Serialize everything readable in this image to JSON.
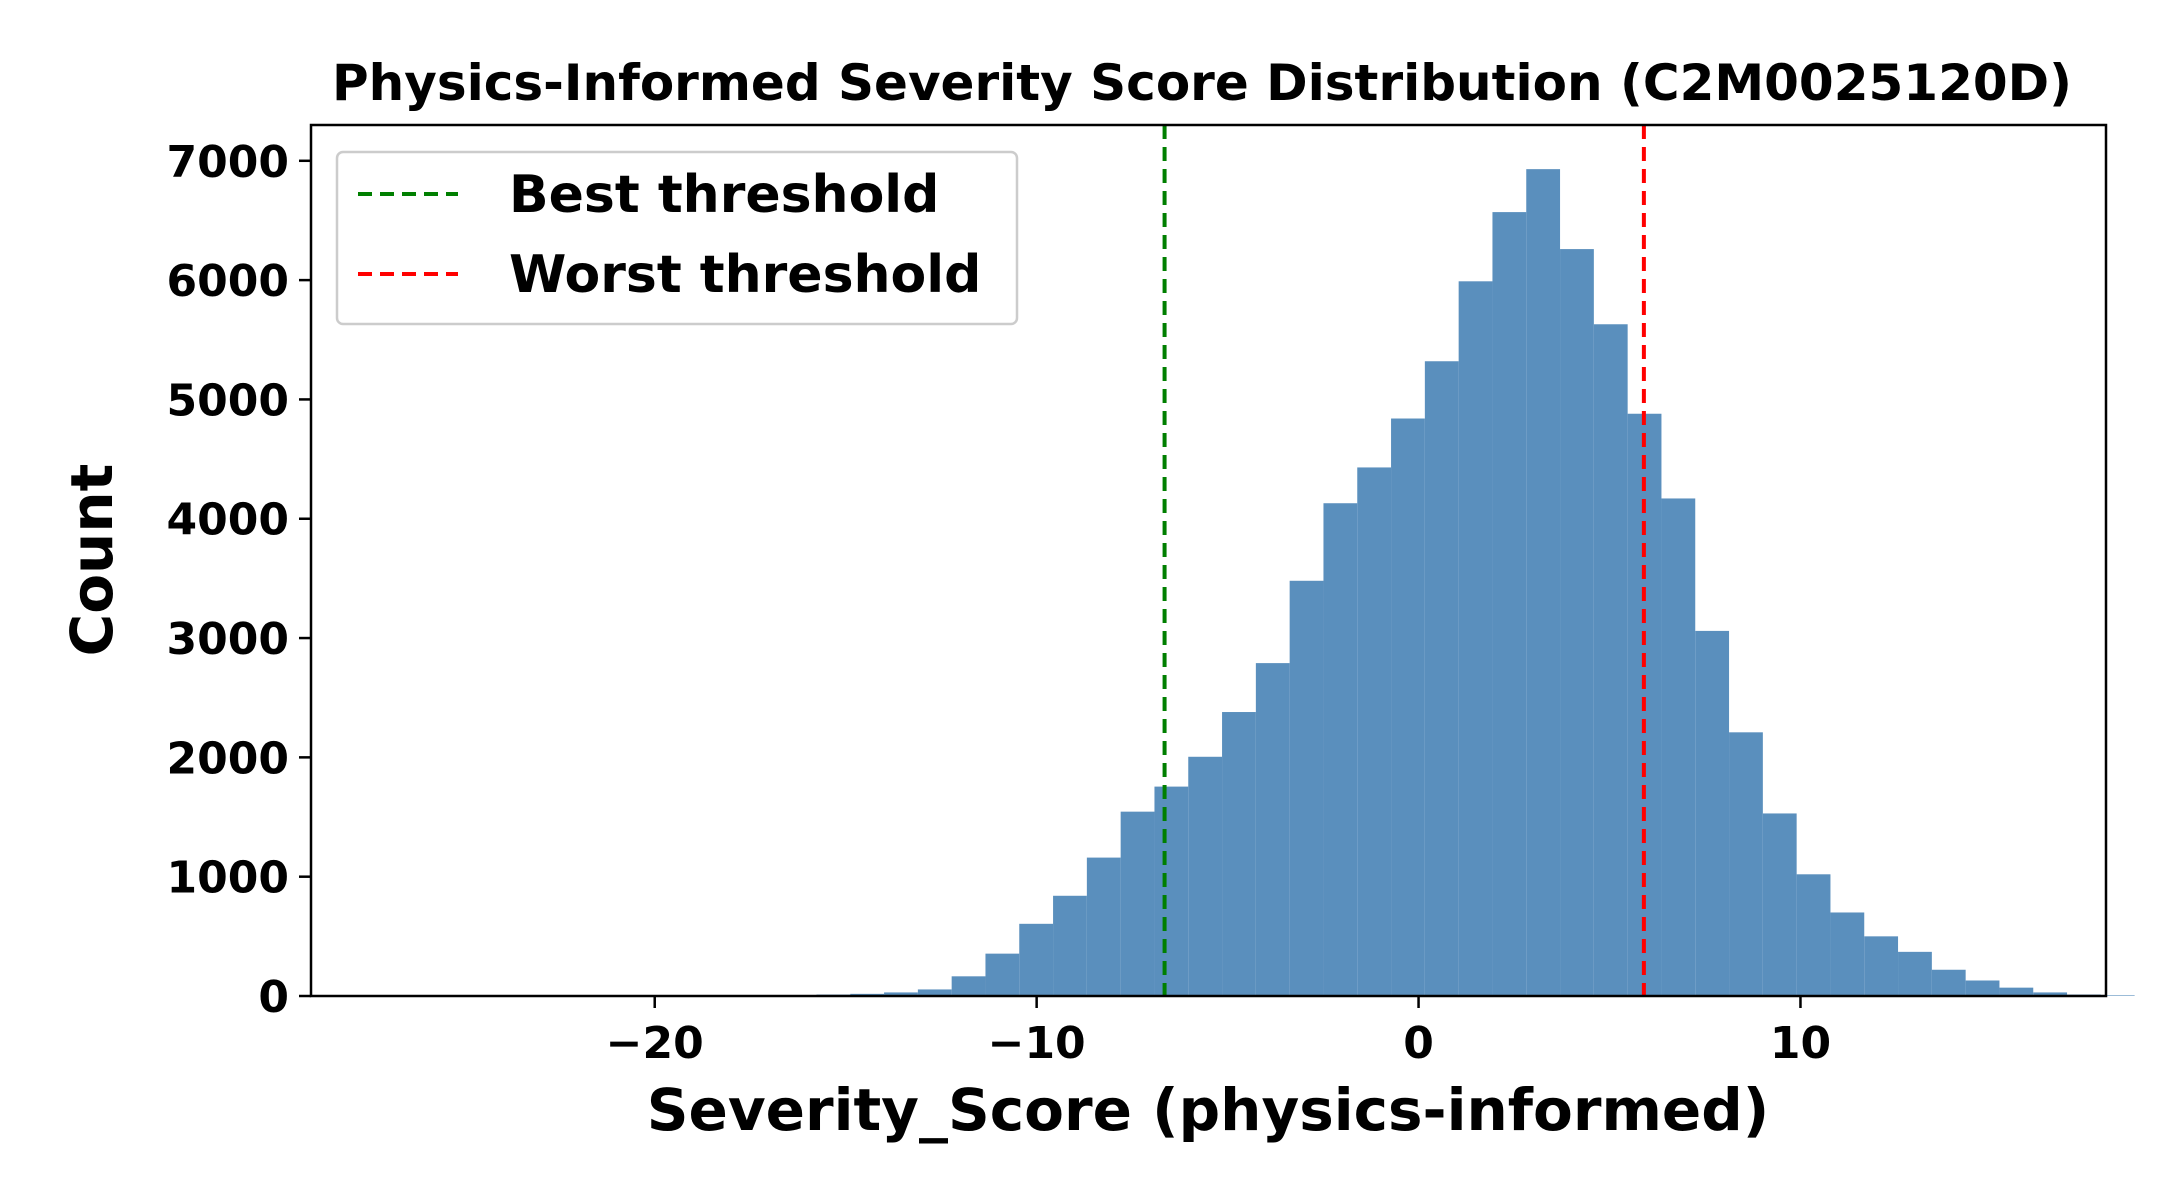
{
  "chart_data": {
    "type": "bar",
    "subtype": "histogram",
    "title": "Physics-Informed Severity Score Distribution (C2M0025120D)",
    "xlabel": "Severity_Score (physics-informed)",
    "ylabel": "Count",
    "xlim": [
      -29.0,
      18.0
    ],
    "ylim": [
      0,
      7300
    ],
    "x_ticks": [
      -20,
      -10,
      0,
      10
    ],
    "x_tick_labels": [
      "−20",
      "−10",
      "0",
      "10"
    ],
    "y_ticks": [
      0,
      1000,
      2000,
      3000,
      4000,
      5000,
      6000,
      7000
    ],
    "y_tick_labels": [
      "0",
      "1000",
      "2000",
      "3000",
      "4000",
      "5000",
      "6000",
      "7000"
    ],
    "bar_color": "#5a8fbd",
    "grid": false,
    "bins": {
      "left_edge": -25.5,
      "width": 0.885,
      "counts": [
        2,
        1,
        1,
        1,
        1,
        2,
        2,
        2,
        3,
        5,
        8,
        12,
        18,
        30,
        55,
        165,
        355,
        605,
        840,
        1160,
        1545,
        1755,
        2005,
        2380,
        2790,
        3480,
        4130,
        4430,
        4840,
        5320,
        5990,
        6570,
        6930,
        6260,
        5630,
        4880,
        4170,
        3060,
        2210,
        1530,
        1020,
        700,
        500,
        370,
        220,
        130,
        70,
        30,
        12,
        5
      ]
    },
    "thresholds": [
      {
        "name": "Best threshold",
        "x": -6.65,
        "color": "#007f00"
      },
      {
        "name": "Worst threshold",
        "x": 5.9,
        "color": "#ff0000"
      }
    ],
    "legend": {
      "placement": "top-left"
    }
  }
}
